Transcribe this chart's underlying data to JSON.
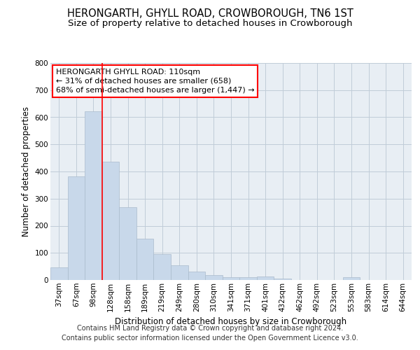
{
  "title": "HERONGARTH, GHYLL ROAD, CROWBOROUGH, TN6 1ST",
  "subtitle": "Size of property relative to detached houses in Crowborough",
  "xlabel": "Distribution of detached houses by size in Crowborough",
  "ylabel": "Number of detached properties",
  "categories": [
    "37sqm",
    "67sqm",
    "98sqm",
    "128sqm",
    "158sqm",
    "189sqm",
    "219sqm",
    "249sqm",
    "280sqm",
    "310sqm",
    "341sqm",
    "371sqm",
    "401sqm",
    "432sqm",
    "462sqm",
    "492sqm",
    "523sqm",
    "553sqm",
    "583sqm",
    "614sqm",
    "644sqm"
  ],
  "values": [
    46,
    383,
    623,
    437,
    268,
    153,
    96,
    53,
    31,
    18,
    10,
    10,
    12,
    5,
    0,
    0,
    0,
    10,
    0,
    0,
    0
  ],
  "bar_color": "#c8d8ea",
  "bar_edge_color": "#aabbcc",
  "grid_color": "#c0ccd8",
  "background_color": "#e8eef4",
  "annotation_line1": "HERONGARTH GHYLL ROAD: 110sqm",
  "annotation_line2": "← 31% of detached houses are smaller (658)",
  "annotation_line3": "68% of semi-detached houses are larger (1,447) →",
  "redline_bar_index": 3,
  "ylim": [
    0,
    800
  ],
  "yticks": [
    0,
    100,
    200,
    300,
    400,
    500,
    600,
    700,
    800
  ],
  "title_fontsize": 10.5,
  "subtitle_fontsize": 9.5,
  "axis_fontsize": 8.5,
  "tick_fontsize": 7.5,
  "ann_fontsize": 8,
  "footer_text": "Contains HM Land Registry data © Crown copyright and database right 2024.\nContains public sector information licensed under the Open Government Licence v3.0.",
  "footer_fontsize": 7
}
